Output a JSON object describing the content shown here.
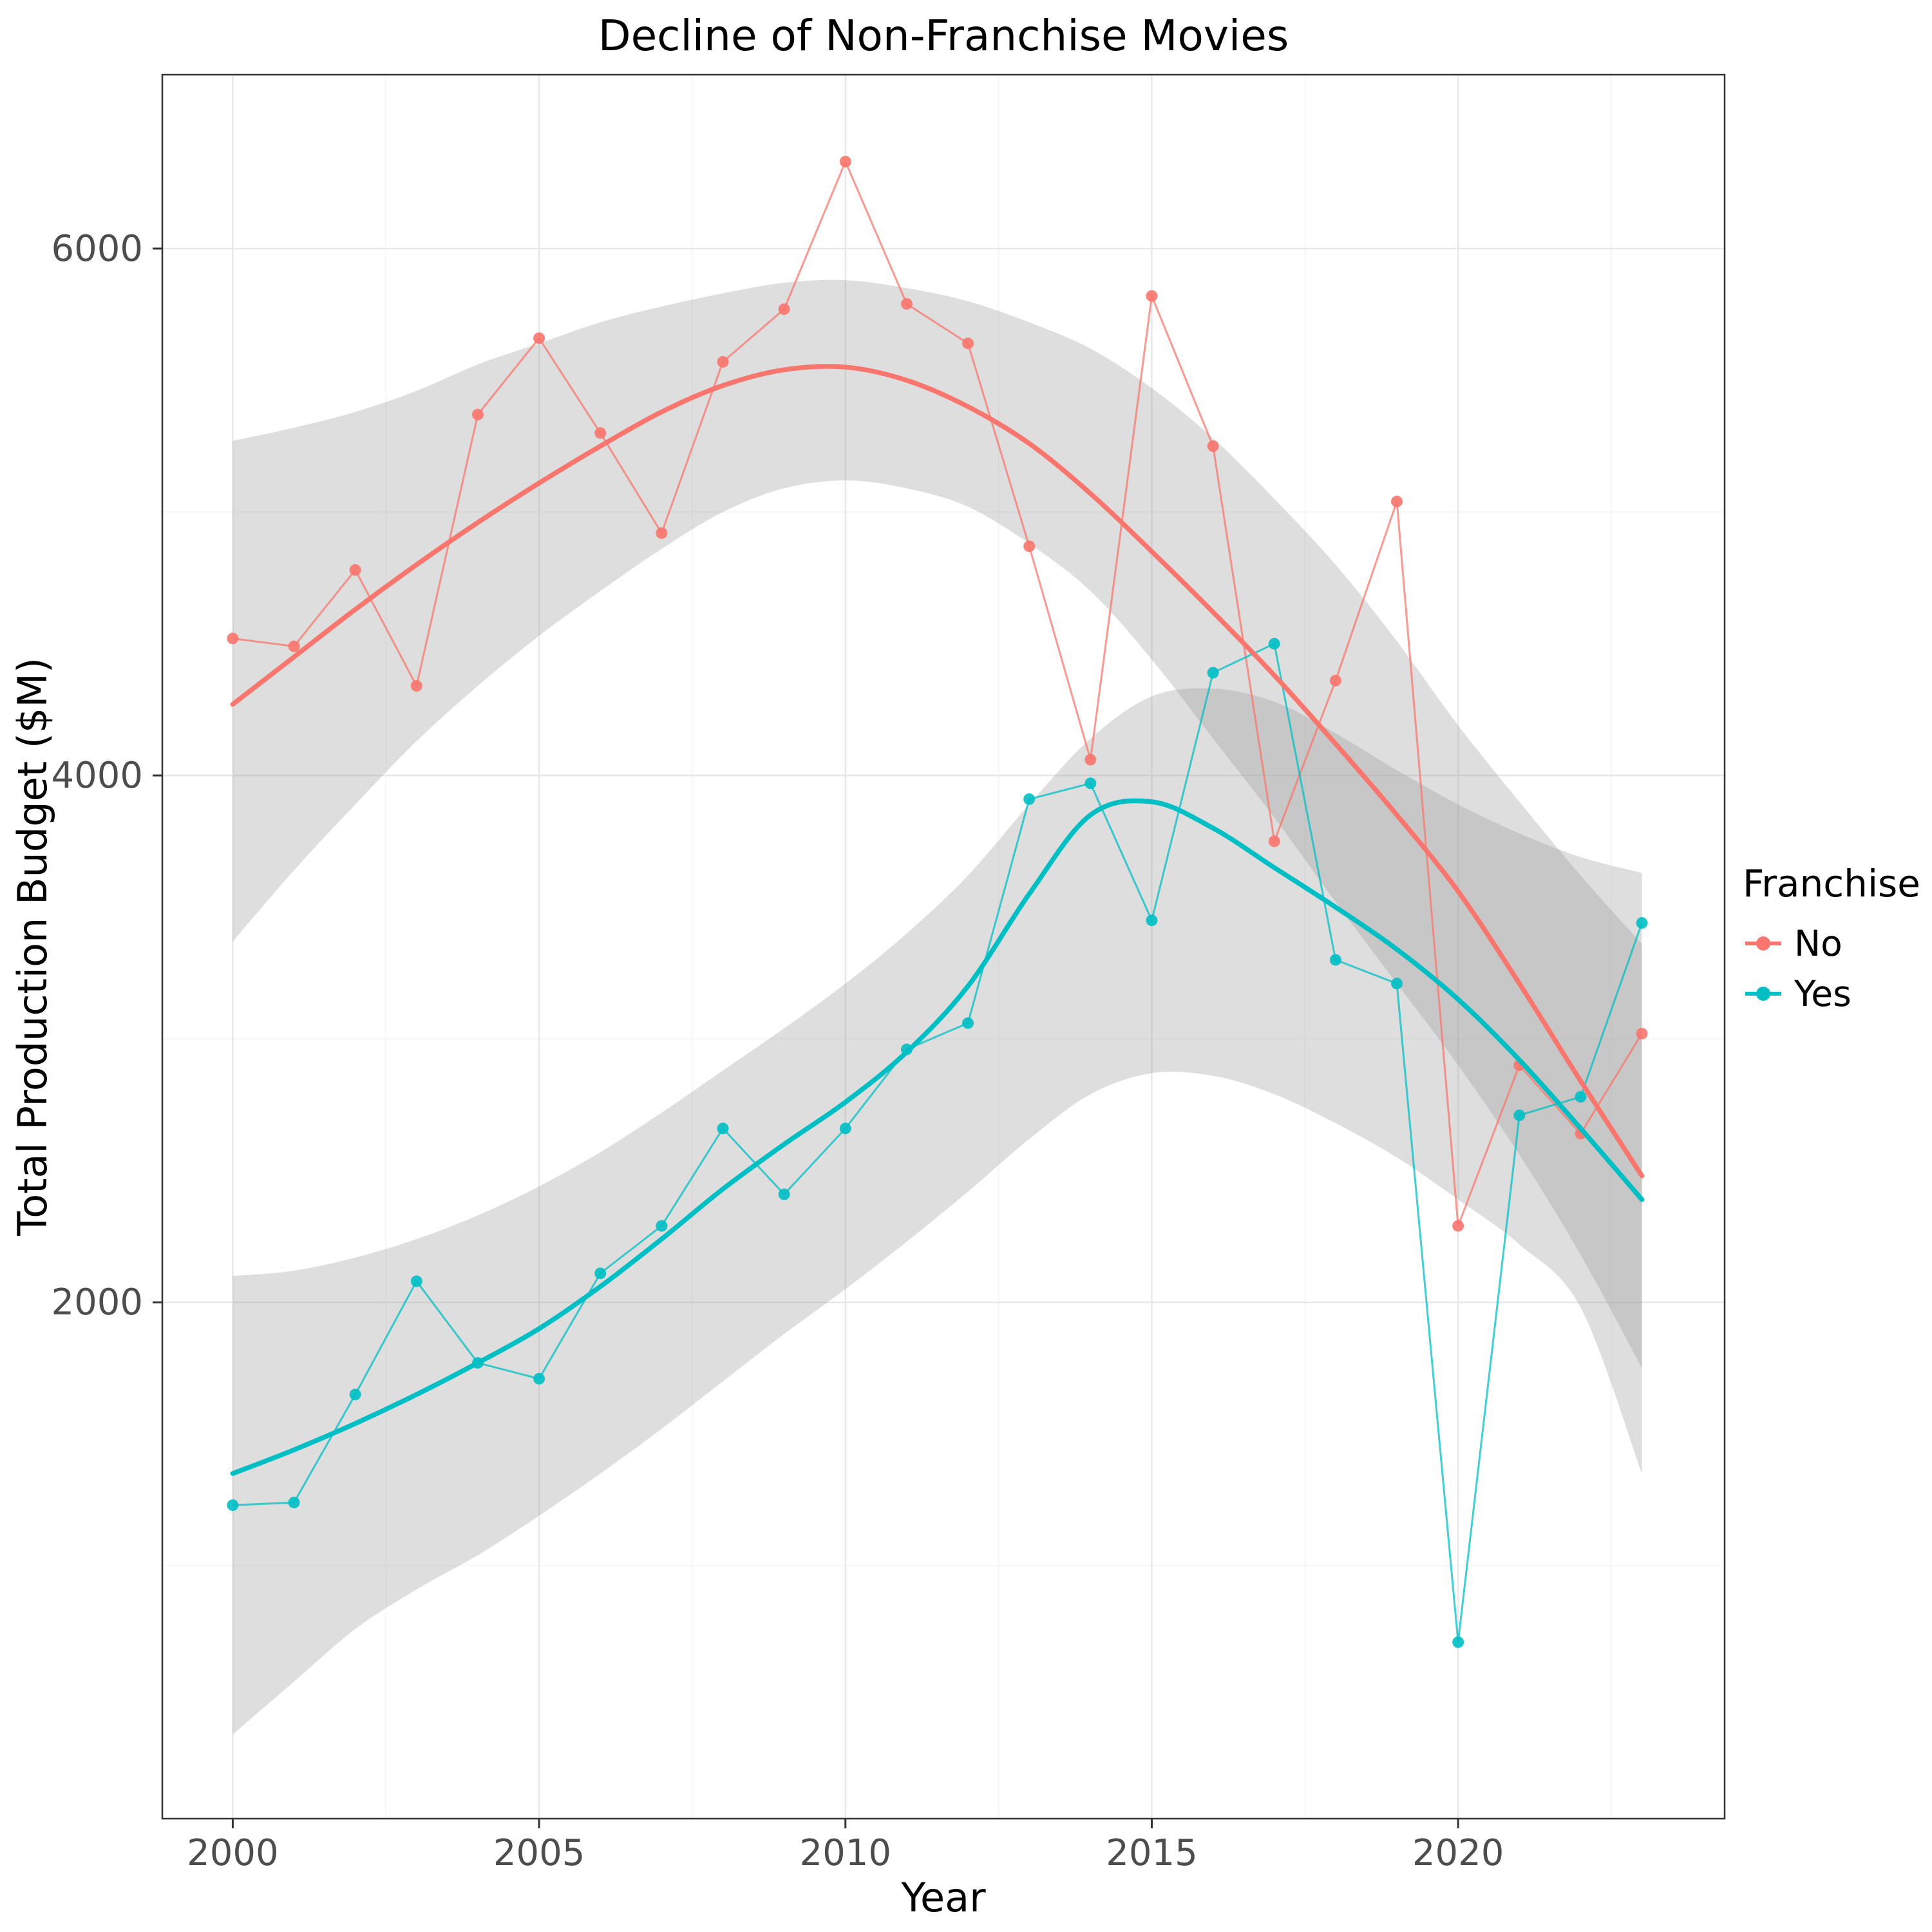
{
  "title": "Decline of Non-Franchise Movies",
  "axes": {
    "x_label": "Year",
    "y_label": "Total Production Budget ($M)"
  },
  "legend": {
    "title": "Franchise",
    "entries": [
      {
        "label": "No",
        "color": "#F8766D"
      },
      {
        "label": "Yes",
        "color": "#00BFC4"
      }
    ]
  },
  "chart_data": {
    "type": "line",
    "title": "Decline of Non-Franchise Movies",
    "xlabel": "Year",
    "ylabel": "Total Production Budget ($M)",
    "legend_title": "Franchise",
    "legend_position": "right",
    "grid": true,
    "background": "#ffffff",
    "panel_border_color": "#333333",
    "grid_major_color": "#e8e8e8",
    "grid_minor_color": "#f4f4f4",
    "ribbon_color": "#999999",
    "ribbon_opacity": 0.32,
    "xlim": [
      1998.85,
      2024.35
    ],
    "ylim": [
      40,
      6660
    ],
    "x_ticks": [
      2000,
      2005,
      2010,
      2015,
      2020
    ],
    "y_ticks": [
      2000,
      4000,
      6000
    ],
    "x": [
      2000,
      2001,
      2002,
      2003,
      2004,
      2005,
      2006,
      2007,
      2008,
      2009,
      2010,
      2011,
      2012,
      2013,
      2014,
      2015,
      2016,
      2017,
      2018,
      2019,
      2020,
      2021,
      2022,
      2023
    ],
    "series": [
      {
        "name": "No",
        "color": "#F8766D",
        "values": [
          4520,
          4490,
          4780,
          4340,
          5370,
          5660,
          5300,
          4920,
          5570,
          5770,
          6330,
          5790,
          5640,
          4870,
          4060,
          5820,
          5250,
          3750,
          4360,
          5040,
          2290,
          2900,
          2640,
          3020
        ],
        "trend": [
          4270,
          4450,
          4630,
          4800,
          4960,
          5110,
          5250,
          5380,
          5480,
          5540,
          5550,
          5500,
          5400,
          5260,
          5070,
          4850,
          4620,
          4380,
          4120,
          3850,
          3560,
          3210,
          2840,
          2480
        ],
        "ribbon_lower": [
          3370,
          3640,
          3890,
          4130,
          4340,
          4530,
          4700,
          4860,
          5000,
          5090,
          5120,
          5090,
          5020,
          4880,
          4700,
          4440,
          4140,
          3840,
          3520,
          3210,
          2900,
          2560,
          2180,
          1750
        ],
        "ribbon_upper": [
          5270,
          5320,
          5380,
          5460,
          5560,
          5640,
          5720,
          5780,
          5830,
          5870,
          5880,
          5850,
          5800,
          5720,
          5620,
          5470,
          5280,
          5050,
          4800,
          4510,
          4190,
          3900,
          3620,
          3360
        ]
      },
      {
        "name": "Yes",
        "color": "#00BFC4",
        "values": [
          1230,
          1240,
          1650,
          2080,
          1770,
          1710,
          2110,
          2290,
          2660,
          2410,
          2660,
          2960,
          3060,
          3910,
          3970,
          3450,
          4390,
          4500,
          3300,
          3210,
          710,
          2710,
          2780,
          3440
        ],
        "trend": [
          1350,
          1440,
          1540,
          1650,
          1770,
          1900,
          2060,
          2240,
          2430,
          2600,
          2760,
          2950,
          3200,
          3550,
          3850,
          3900,
          3800,
          3650,
          3500,
          3340,
          3150,
          2920,
          2660,
          2390
        ],
        "ribbon_lower": [
          360,
          560,
          760,
          910,
          1040,
          1190,
          1350,
          1520,
          1700,
          1880,
          2050,
          2230,
          2420,
          2620,
          2790,
          2870,
          2860,
          2790,
          2680,
          2550,
          2390,
          2220,
          1980,
          1350
        ],
        "ribbon_upper": [
          2100,
          2120,
          2170,
          2240,
          2330,
          2440,
          2570,
          2720,
          2880,
          3040,
          3210,
          3400,
          3620,
          3890,
          4140,
          4300,
          4330,
          4280,
          4160,
          4020,
          3890,
          3780,
          3690,
          3630
        ]
      }
    ]
  }
}
